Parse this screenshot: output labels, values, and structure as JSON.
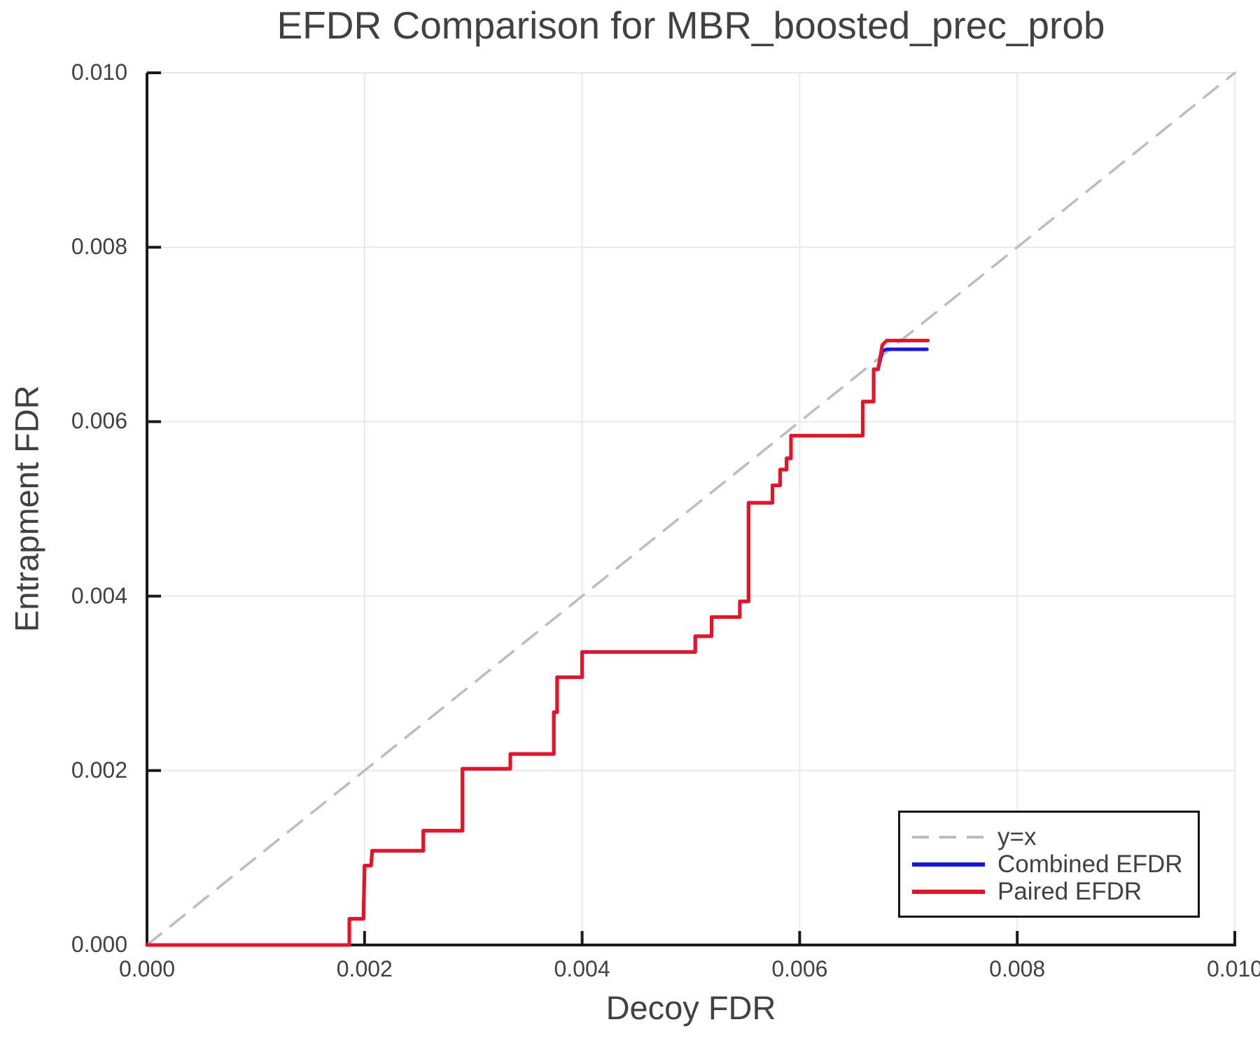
{
  "colors": {
    "background": "#ffffff",
    "grid": "#e9e9e9",
    "spine": "#1a1a1a",
    "text": "#414141",
    "identity_line": "#bdbdbd",
    "combined_efdr": "#1515e6",
    "paired_efdr": "#ee1122"
  },
  "chart_data": {
    "type": "line",
    "title": "EFDR Comparison for MBR_boosted_prec_prob",
    "xlabel": "Decoy FDR",
    "ylabel": "Entrapment FDR",
    "xlim": [
      0.0,
      0.01
    ],
    "ylim": [
      0.0,
      0.01
    ],
    "grid": true,
    "legend_position": "lower right",
    "x_ticks": {
      "values": [
        0.0,
        0.002,
        0.004,
        0.006,
        0.008,
        0.01
      ],
      "labels": [
        "0.000",
        "0.002",
        "0.004",
        "0.006",
        "0.008",
        "0.010"
      ]
    },
    "y_ticks": {
      "values": [
        0.0,
        0.002,
        0.004,
        0.006,
        0.008,
        0.01
      ],
      "labels": [
        "0.000",
        "0.002",
        "0.004",
        "0.006",
        "0.008",
        "0.010"
      ]
    },
    "series": [
      {
        "name": "y=x",
        "color": "#bdbdbd",
        "style": "dashed",
        "points": [
          [
            0.0,
            0.0
          ],
          [
            0.01,
            0.01
          ]
        ]
      },
      {
        "name": "Combined EFDR",
        "color": "#1515e6",
        "style": "solid",
        "points": [
          [
            0.0,
            0.0
          ],
          [
            0.00186,
            0.0
          ],
          [
            0.00186,
            0.0003
          ],
          [
            0.00199,
            0.0003
          ],
          [
            0.002,
            0.00091
          ],
          [
            0.00206,
            0.00091
          ],
          [
            0.00207,
            0.00108
          ],
          [
            0.00254,
            0.00108
          ],
          [
            0.00254,
            0.00131
          ],
          [
            0.0029,
            0.00131
          ],
          [
            0.0029,
            0.00202
          ],
          [
            0.00334,
            0.00202
          ],
          [
            0.00334,
            0.00219
          ],
          [
            0.00374,
            0.00219
          ],
          [
            0.00374,
            0.00267
          ],
          [
            0.00377,
            0.00267
          ],
          [
            0.00377,
            0.00307
          ],
          [
            0.004,
            0.00307
          ],
          [
            0.004,
            0.00336
          ],
          [
            0.00504,
            0.00336
          ],
          [
            0.00504,
            0.00354
          ],
          [
            0.00519,
            0.00354
          ],
          [
            0.00519,
            0.00376
          ],
          [
            0.00545,
            0.00376
          ],
          [
            0.00545,
            0.00394
          ],
          [
            0.00553,
            0.00394
          ],
          [
            0.00553,
            0.00507
          ],
          [
            0.00575,
            0.00507
          ],
          [
            0.00575,
            0.00527
          ],
          [
            0.00582,
            0.00527
          ],
          [
            0.00582,
            0.00545
          ],
          [
            0.00588,
            0.00545
          ],
          [
            0.00588,
            0.00558
          ],
          [
            0.00592,
            0.00558
          ],
          [
            0.00592,
            0.00584
          ],
          [
            0.00658,
            0.00584
          ],
          [
            0.00658,
            0.00623
          ],
          [
            0.00668,
            0.00623
          ],
          [
            0.00668,
            0.0066
          ],
          [
            0.00672,
            0.0066
          ],
          [
            0.00676,
            0.00681
          ],
          [
            0.0068,
            0.00683
          ],
          [
            0.00717,
            0.00683
          ]
        ]
      },
      {
        "name": "Paired EFDR",
        "color": "#ee1122",
        "style": "solid",
        "points": [
          [
            0.0,
            0.0
          ],
          [
            0.00186,
            0.0
          ],
          [
            0.00186,
            0.0003
          ],
          [
            0.00199,
            0.0003
          ],
          [
            0.002,
            0.00091
          ],
          [
            0.00206,
            0.00091
          ],
          [
            0.00207,
            0.00108
          ],
          [
            0.00254,
            0.00108
          ],
          [
            0.00254,
            0.00131
          ],
          [
            0.0029,
            0.00131
          ],
          [
            0.0029,
            0.00202
          ],
          [
            0.00334,
            0.00202
          ],
          [
            0.00334,
            0.00219
          ],
          [
            0.00374,
            0.00219
          ],
          [
            0.00374,
            0.00267
          ],
          [
            0.00377,
            0.00267
          ],
          [
            0.00377,
            0.00307
          ],
          [
            0.004,
            0.00307
          ],
          [
            0.004,
            0.00336
          ],
          [
            0.00504,
            0.00336
          ],
          [
            0.00504,
            0.00354
          ],
          [
            0.00519,
            0.00354
          ],
          [
            0.00519,
            0.00376
          ],
          [
            0.00545,
            0.00376
          ],
          [
            0.00545,
            0.00394
          ],
          [
            0.00553,
            0.00394
          ],
          [
            0.00553,
            0.00507
          ],
          [
            0.00575,
            0.00507
          ],
          [
            0.00575,
            0.00527
          ],
          [
            0.00582,
            0.00527
          ],
          [
            0.00582,
            0.00545
          ],
          [
            0.00588,
            0.00545
          ],
          [
            0.00588,
            0.00558
          ],
          [
            0.00592,
            0.00558
          ],
          [
            0.00592,
            0.00584
          ],
          [
            0.00658,
            0.00584
          ],
          [
            0.00658,
            0.00623
          ],
          [
            0.00668,
            0.00623
          ],
          [
            0.00668,
            0.0066
          ],
          [
            0.00672,
            0.0066
          ],
          [
            0.00676,
            0.00688
          ],
          [
            0.0068,
            0.00693
          ],
          [
            0.00718,
            0.00693
          ]
        ]
      }
    ]
  }
}
